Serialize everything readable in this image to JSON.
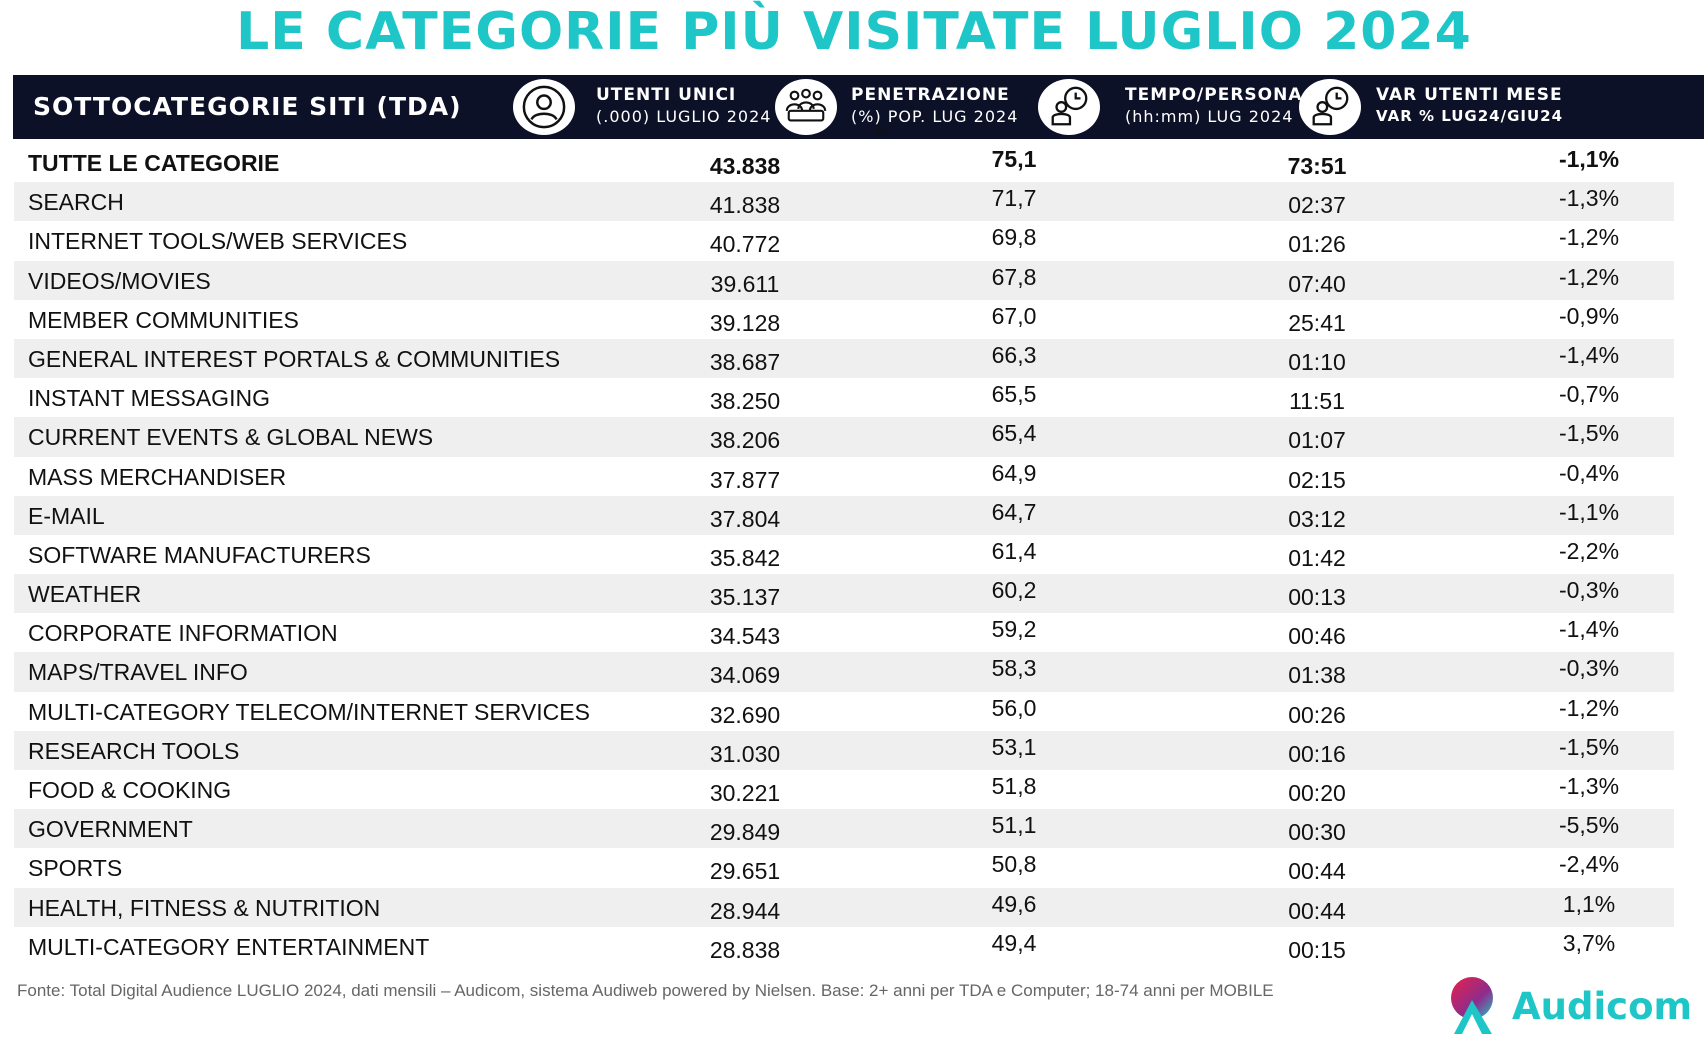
{
  "title": "LE CATEGORIE PIÙ VISITATE LUGLIO 2024",
  "header": {
    "category": "SOTTOCATEGORIE SITI  (TDA)",
    "users": {
      "line1": "UTENTI UNICI",
      "line2": "(.000) LUGLIO 2024",
      "icon": "user-icon"
    },
    "penetration": {
      "line1": "PENETRAZIONE",
      "line2": "(%) POP. LUG 2024",
      "icon": "group-percent-icon",
      "mark": "%"
    },
    "time": {
      "line1": "TEMPO/PERSONA",
      "line2": "(hh:mm) LUG 2024",
      "icon": "user-clock-icon"
    },
    "variation": {
      "line1": "VAR UTENTI MESE",
      "line2": "VAR % LUG24/GIU24",
      "icon": "user-clock-icon"
    }
  },
  "chart_data": {
    "type": "table",
    "columns": [
      "SOTTOCATEGORIE SITI  (TDA)",
      "UTENTI UNICI (.000) LUGLIO 2024",
      "PENETRAZIONE (%) POP. LUG 2024",
      "TEMPO/PERSONA (hh:mm) LUG 2024",
      "VAR UTENTI MESE VAR % LUG24/GIU24"
    ],
    "rows": [
      {
        "name": "TUTTE LE CATEGORIE",
        "users": "43.838",
        "penetration": "75,1",
        "time": "73:51",
        "var": "-1,1%"
      },
      {
        "name": "SEARCH",
        "users": "41.838",
        "penetration": "71,7",
        "time": "02:37",
        "var": "-1,3%"
      },
      {
        "name": "INTERNET TOOLS/WEB SERVICES",
        "users": "40.772",
        "penetration": "69,8",
        "time": "01:26",
        "var": "-1,2%"
      },
      {
        "name": "VIDEOS/MOVIES",
        "users": "39.611",
        "penetration": "67,8",
        "time": "07:40",
        "var": "-1,2%"
      },
      {
        "name": "MEMBER COMMUNITIES",
        "users": "39.128",
        "penetration": "67,0",
        "time": "25:41",
        "var": "-0,9%"
      },
      {
        "name": "GENERAL INTEREST PORTALS & COMMUNITIES",
        "users": "38.687",
        "penetration": "66,3",
        "time": "01:10",
        "var": "-1,4%"
      },
      {
        "name": "INSTANT MESSAGING",
        "users": "38.250",
        "penetration": "65,5",
        "time": "11:51",
        "var": "-0,7%"
      },
      {
        "name": "CURRENT EVENTS & GLOBAL NEWS",
        "users": "38.206",
        "penetration": "65,4",
        "time": "01:07",
        "var": "-1,5%"
      },
      {
        "name": "MASS MERCHANDISER",
        "users": "37.877",
        "penetration": "64,9",
        "time": "02:15",
        "var": "-0,4%"
      },
      {
        "name": "E-MAIL",
        "users": "37.804",
        "penetration": "64,7",
        "time": "03:12",
        "var": "-1,1%"
      },
      {
        "name": "SOFTWARE MANUFACTURERS",
        "users": "35.842",
        "penetration": "61,4",
        "time": "01:42",
        "var": "-2,2%"
      },
      {
        "name": "WEATHER",
        "users": "35.137",
        "penetration": "60,2",
        "time": "00:13",
        "var": "-0,3%"
      },
      {
        "name": "CORPORATE INFORMATION",
        "users": "34.543",
        "penetration": "59,2",
        "time": "00:46",
        "var": "-1,4%"
      },
      {
        "name": "MAPS/TRAVEL INFO",
        "users": "34.069",
        "penetration": "58,3",
        "time": "01:38",
        "var": "-0,3%"
      },
      {
        "name": "MULTI-CATEGORY TELECOM/INTERNET SERVICES",
        "users": "32.690",
        "penetration": "56,0",
        "time": "00:26",
        "var": "-1,2%"
      },
      {
        "name": "RESEARCH TOOLS",
        "users": "31.030",
        "penetration": "53,1",
        "time": "00:16",
        "var": "-1,5%"
      },
      {
        "name": "FOOD & COOKING",
        "users": "30.221",
        "penetration": "51,8",
        "time": "00:20",
        "var": "-1,3%"
      },
      {
        "name": "GOVERNMENT",
        "users": "29.849",
        "penetration": "51,1",
        "time": "00:30",
        "var": "-5,5%"
      },
      {
        "name": "SPORTS",
        "users": "29.651",
        "penetration": "50,8",
        "time": "00:44",
        "var": "-2,4%"
      },
      {
        "name": "HEALTH, FITNESS & NUTRITION",
        "users": "28.944",
        "penetration": "49,6",
        "time": "00:44",
        "var": "1,1%"
      },
      {
        "name": "MULTI-CATEGORY ENTERTAINMENT",
        "users": "28.838",
        "penetration": "49,4",
        "time": "00:15",
        "var": "3,7%"
      }
    ]
  },
  "footer": "Fonte: Total Digital Audience LUGLIO 2024, dati mensili – Audicom, sistema Audiweb powered by Nielsen. Base: 2+ anni per TDA e Computer; 18-74 anni per MOBILE",
  "logo": {
    "text": "Audicom",
    "icon": "audicom-logo-icon"
  },
  "colors": {
    "accent": "#1fc6c8",
    "header_bg": "#0d1128",
    "row_shade": "#efefef",
    "footer_text": "#666666"
  }
}
